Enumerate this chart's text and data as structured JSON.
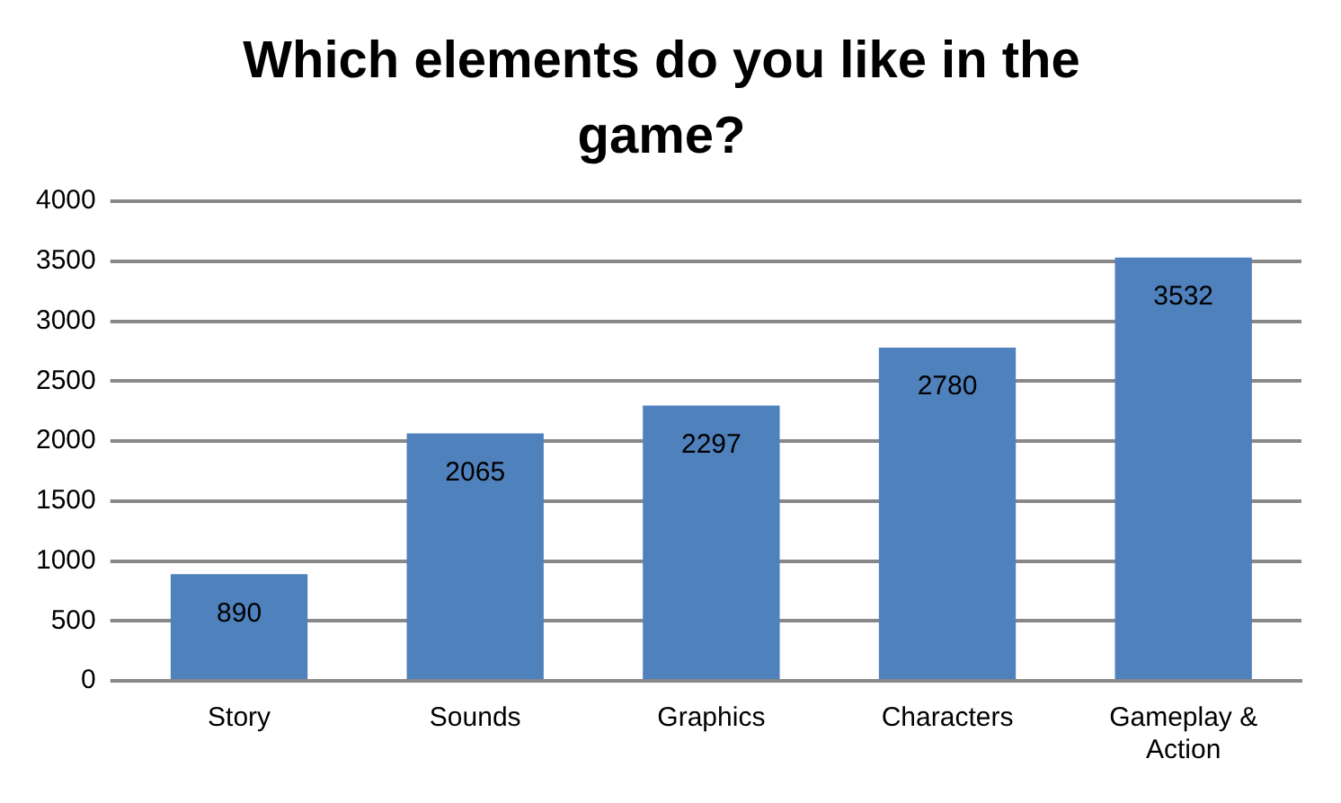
{
  "chart_data": {
    "type": "bar",
    "title": "Which elements do you like in the game?",
    "categories": [
      "Story",
      "Sounds",
      "Graphics",
      "Characters",
      "Gameplay & Action"
    ],
    "values": [
      890,
      2065,
      2297,
      2780,
      3532
    ],
    "color": "#4f81bd",
    "ylim": [
      0,
      4000
    ],
    "yticks": [
      0,
      500,
      1000,
      1500,
      2000,
      2500,
      3000,
      3500,
      4000
    ],
    "grid": "y",
    "data_labels": true,
    "legend": false
  }
}
